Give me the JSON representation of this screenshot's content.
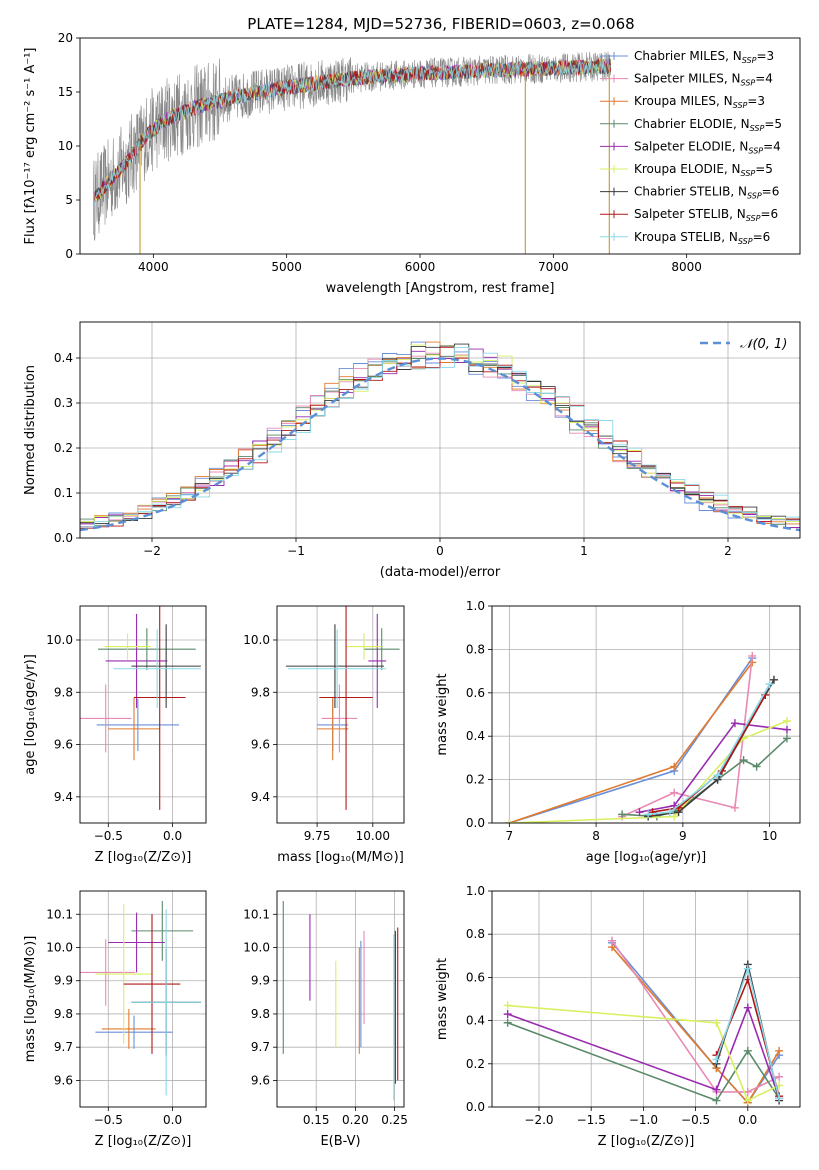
{
  "figure_title": "PLATE=1284, MJD=52736, FIBERID=0603, z=0.068",
  "colors": [
    "#6a8fd8",
    "#e88ab4",
    "#e07a2e",
    "#5a8a6a",
    "#9a2bb0",
    "#d7f060",
    "#3b3b3b",
    "#b01818",
    "#8ad8e8"
  ],
  "chart_data": [
    {
      "type": "line",
      "name": "spectrum",
      "xlabel": "wavelength [Angstrom, rest frame]",
      "ylabel": "Flux [fλ10⁻¹⁷ erg cm⁻² s⁻¹ A⁻¹]",
      "xlim": [
        3450,
        8850
      ],
      "ylim": [
        0,
        20
      ],
      "xticks": [
        4000,
        5000,
        6000,
        7000,
        8000
      ],
      "yticks": [
        0,
        5,
        10,
        15,
        20
      ],
      "grid": false,
      "legend_position": "right",
      "legend": [
        {
          "label": "Chabrier MILES, N",
          "sub": "SSP",
          "tail": "=3",
          "color": "#6a8fd8"
        },
        {
          "label": "Salpeter MILES, N",
          "sub": "SSP",
          "tail": "=4",
          "color": "#e88ab4"
        },
        {
          "label": "Kroupa MILES, N",
          "sub": "SSP",
          "tail": "=3",
          "color": "#e07a2e"
        },
        {
          "label": "Chabrier ELODIE, N",
          "sub": "SSP",
          "tail": "=5",
          "color": "#5a8a6a"
        },
        {
          "label": "Salpeter ELODIE, N",
          "sub": "SSP",
          "tail": "=4",
          "color": "#9a2bb0"
        },
        {
          "label": "Kroupa ELODIE, N",
          "sub": "SSP",
          "tail": "=5",
          "color": "#d7f060"
        },
        {
          "label": "Chabrier STELIB, N",
          "sub": "SSP",
          "tail": "=6",
          "color": "#3b3b3b"
        },
        {
          "label": "Salpeter STELIB, N",
          "sub": "SSP",
          "tail": "=6",
          "color": "#b01818"
        },
        {
          "label": "Kroupa STELIB, N",
          "sub": "SSP",
          "tail": "=6",
          "color": "#8ad8e8"
        }
      ],
      "continuum": [
        [
          3550,
          5.0
        ],
        [
          3650,
          6.5
        ],
        [
          3800,
          8.5
        ],
        [
          3950,
          11.0
        ],
        [
          4100,
          12.5
        ],
        [
          4300,
          13.5
        ],
        [
          4500,
          14.2
        ],
        [
          4800,
          15.0
        ],
        [
          5100,
          15.6
        ],
        [
          5500,
          16.3
        ],
        [
          6000,
          16.7
        ],
        [
          6500,
          17.0
        ],
        [
          7000,
          17.2
        ],
        [
          7430,
          17.4
        ]
      ],
      "spikes": [
        [
          3900,
          0
        ],
        [
          6790,
          0
        ],
        [
          7420,
          0
        ]
      ]
    },
    {
      "type": "bar",
      "name": "residual_histogram",
      "xlabel": "(data-model)/error",
      "ylabel": "Normed distribution",
      "xlim": [
        -2.5,
        2.5
      ],
      "ylim": [
        0,
        0.48
      ],
      "xticks": [
        -2,
        -1,
        0,
        1,
        2
      ],
      "xticklabels": [
        "−2",
        "−1",
        "0",
        "1",
        "2"
      ],
      "yticks": [
        0.0,
        0.1,
        0.2,
        0.3,
        0.4
      ],
      "yticklabels": [
        "0.0",
        "0.1",
        "0.2",
        "0.3",
        "0.4"
      ],
      "grid": true,
      "legend_position": "top-right",
      "legend_label": "𝒩(0, 1)",
      "reference_curve": {
        "name": "𝒩(0, 1)",
        "style": "dashed",
        "color": "#5b8fd6"
      }
    },
    {
      "type": "scatter",
      "name": "age_vs_Z",
      "xlabel": "Z [log₁₀(Z/Z⊙)]",
      "ylabel": "age  [log₁₀(age/yr)]",
      "xlim": [
        -0.72,
        0.26
      ],
      "ylim": [
        9.3,
        10.13
      ],
      "xticks": [
        -0.5,
        0.0
      ],
      "xticklabels": [
        "−0.5",
        "0.0"
      ],
      "yticks": [
        9.4,
        9.6,
        9.8,
        10.0
      ],
      "yticklabels": [
        "9.4",
        "9.6",
        "9.8",
        "10.0"
      ],
      "grid": true,
      "points": [
        {
          "x": -0.27,
          "xerr": 0.32,
          "y": 9.675,
          "yerr": 0.1,
          "color": "#6a8fd8"
        },
        {
          "x": -0.52,
          "xerr": 0.2,
          "y": 9.7,
          "yerr": 0.13,
          "color": "#e88ab4"
        },
        {
          "x": -0.3,
          "xerr": 0.2,
          "y": 9.66,
          "yerr": 0.12,
          "color": "#e07a2e"
        },
        {
          "x": -0.2,
          "xerr": 0.38,
          "y": 9.965,
          "yerr": 0.08,
          "color": "#5a8a6a"
        },
        {
          "x": -0.28,
          "xerr": 0.24,
          "y": 9.92,
          "yerr": 0.18,
          "color": "#9a2bb0"
        },
        {
          "x": -0.35,
          "xerr": 0.18,
          "y": 9.975,
          "yerr": 0.05,
          "color": "#d7f060"
        },
        {
          "x": -0.05,
          "xerr": 0.27,
          "y": 9.9,
          "yerr": 0.16,
          "color": "#3b3b3b"
        },
        {
          "x": -0.1,
          "xerr": 0.2,
          "y": 9.78,
          "yerr": 0.43,
          "color": "#b01818"
        },
        {
          "x": -0.12,
          "xerr": 0.34,
          "y": 9.89,
          "yerr": 0.15,
          "color": "#8ad8e8"
        }
      ]
    },
    {
      "type": "scatter",
      "name": "age_vs_mass",
      "xlabel": "mass [log₁₀(M/M⊙)]",
      "ylabel": "",
      "xlim": [
        9.57,
        10.14
      ],
      "ylim": [
        9.3,
        10.13
      ],
      "xticks": [
        9.75,
        10.0
      ],
      "xticklabels": [
        "9.75",
        "10.00"
      ],
      "yticks": [
        9.4,
        9.6,
        9.8,
        10.0
      ],
      "yticklabels": [
        "9.4",
        "9.6",
        "9.8",
        "10.0"
      ],
      "grid": true,
      "points": [
        {
          "x": 9.82,
          "xerr": 0.07,
          "y": 9.675,
          "yerr": 0.1,
          "color": "#6a8fd8"
        },
        {
          "x": 9.85,
          "xerr": 0.08,
          "y": 9.7,
          "yerr": 0.13,
          "color": "#e88ab4"
        },
        {
          "x": 9.82,
          "xerr": 0.07,
          "y": 9.66,
          "yerr": 0.12,
          "color": "#e07a2e"
        },
        {
          "x": 10.04,
          "xerr": 0.08,
          "y": 9.965,
          "yerr": 0.08,
          "color": "#5a8a6a"
        },
        {
          "x": 10.02,
          "xerr": 0.04,
          "y": 9.92,
          "yerr": 0.18,
          "color": "#9a2bb0"
        },
        {
          "x": 9.96,
          "xerr": 0.08,
          "y": 9.975,
          "yerr": 0.05,
          "color": "#d7f060"
        },
        {
          "x": 9.83,
          "xerr": 0.22,
          "y": 9.9,
          "yerr": 0.16,
          "color": "#3b3b3b"
        },
        {
          "x": 9.88,
          "xerr": 0.12,
          "y": 9.78,
          "yerr": 0.43,
          "color": "#b01818"
        },
        {
          "x": 9.84,
          "xerr": 0.22,
          "y": 9.89,
          "yerr": 0.15,
          "color": "#8ad8e8"
        }
      ]
    },
    {
      "type": "line",
      "name": "mass_weight_vs_age",
      "xlabel": "age  [log₁₀(age/yr)]",
      "ylabel": "mass weight",
      "xlim": [
        6.8,
        10.35
      ],
      "ylim": [
        0,
        1.0
      ],
      "xticks": [
        7,
        8,
        9,
        10
      ],
      "yticks": [
        0.0,
        0.2,
        0.4,
        0.6,
        0.8,
        1.0
      ],
      "yticklabels": [
        "0.0",
        "0.2",
        "0.4",
        "0.6",
        "0.8",
        "1.0"
      ],
      "grid": true,
      "series": [
        {
          "color": "#6a8fd8",
          "x": [
            7.0,
            8.9,
            9.8
          ],
          "y": [
            0.0,
            0.24,
            0.76
          ]
        },
        {
          "color": "#e07a2e",
          "x": [
            7.0,
            8.9,
            9.8
          ],
          "y": [
            0.0,
            0.26,
            0.74
          ]
        },
        {
          "color": "#e88ab4",
          "x": [
            8.3,
            8.9,
            9.6,
            9.8
          ],
          "y": [
            0.03,
            0.14,
            0.07,
            0.77
          ]
        },
        {
          "color": "#5a8a6a",
          "x": [
            8.3,
            8.7,
            8.95,
            9.4,
            9.7,
            9.85,
            10.2
          ],
          "y": [
            0.04,
            0.03,
            0.06,
            0.2,
            0.29,
            0.26,
            0.39
          ]
        },
        {
          "color": "#9a2bb0",
          "x": [
            8.5,
            8.9,
            9.6,
            10.2
          ],
          "y": [
            0.05,
            0.08,
            0.46,
            0.43
          ]
        },
        {
          "color": "#d7f060",
          "x": [
            7.0,
            8.9,
            9.7,
            10.2
          ],
          "y": [
            0.0,
            0.03,
            0.39,
            0.47
          ]
        },
        {
          "color": "#3b3b3b",
          "x": [
            8.6,
            8.95,
            9.4,
            10.05
          ],
          "y": [
            0.03,
            0.05,
            0.2,
            0.66
          ]
        },
        {
          "color": "#b01818",
          "x": [
            8.65,
            8.95,
            9.45,
            9.95
          ],
          "y": [
            0.05,
            0.07,
            0.24,
            0.59
          ]
        },
        {
          "color": "#8ad8e8",
          "x": [
            8.6,
            8.85,
            9.4,
            10.0
          ],
          "y": [
            0.04,
            0.05,
            0.22,
            0.64
          ]
        }
      ]
    },
    {
      "type": "scatter",
      "name": "mass_vs_Z",
      "xlabel": "Z [log₁₀(Z/Z⊙)]",
      "ylabel": "mass [log₁₀(M/M⊙)]",
      "xlim": [
        -0.72,
        0.26
      ],
      "ylim": [
        9.52,
        10.17
      ],
      "xticks": [
        -0.5,
        0.0
      ],
      "xticklabels": [
        "−0.5",
        "0.0"
      ],
      "yticks": [
        9.6,
        9.7,
        9.8,
        9.9,
        10.0,
        10.1
      ],
      "yticklabels": [
        "9.6",
        "9.7",
        "9.8",
        "9.9",
        "10.0",
        "10.1"
      ],
      "grid": true,
      "points": [
        {
          "x": -0.3,
          "xerr": 0.3,
          "y": 9.745,
          "yerr": 0.05,
          "color": "#6a8fd8"
        },
        {
          "x": -0.52,
          "xerr": 0.23,
          "y": 9.925,
          "yerr": 0.1,
          "color": "#e88ab4"
        },
        {
          "x": -0.34,
          "xerr": 0.21,
          "y": 9.755,
          "yerr": 0.06,
          "color": "#e07a2e"
        },
        {
          "x": -0.08,
          "xerr": 0.24,
          "y": 10.05,
          "yerr": 0.09,
          "color": "#5a8a6a"
        },
        {
          "x": -0.28,
          "xerr": 0.22,
          "y": 10.015,
          "yerr": 0.09,
          "color": "#9a2bb0"
        },
        {
          "x": -0.38,
          "xerr": 0.22,
          "y": 9.92,
          "yerr": 0.21,
          "color": "#d7f060"
        },
        {
          "x": -0.05,
          "xerr": 0.27,
          "y": 9.835,
          "yerr": 0.16,
          "color": "#3b3b3b"
        },
        {
          "x": -0.16,
          "xerr": 0.22,
          "y": 9.89,
          "yerr": 0.21,
          "color": "#b01818"
        },
        {
          "x": -0.05,
          "xerr": 0.27,
          "y": 9.835,
          "yerr": 0.28,
          "color": "#8ad8e8"
        }
      ]
    },
    {
      "type": "scatter",
      "name": "mass_vs_ebv",
      "xlabel": "E(B-V)",
      "ylabel": "",
      "xlim": [
        0.1,
        0.262
      ],
      "ylim": [
        9.52,
        10.17
      ],
      "xticks": [
        0.15,
        0.2,
        0.25
      ],
      "xticklabels": [
        "0.15",
        "0.20",
        "0.25"
      ],
      "yticks": [
        9.6,
        9.7,
        9.8,
        9.9,
        10.0,
        10.1
      ],
      "yticklabels": [
        "9.6",
        "9.7",
        "9.8",
        "9.9",
        "10.0",
        "10.1"
      ],
      "grid": true,
      "points": [
        {
          "x": 0.207,
          "y": 9.86,
          "yerr": 0.16,
          "color": "#6a8fd8"
        },
        {
          "x": 0.211,
          "y": 9.91,
          "yerr": 0.14,
          "color": "#e88ab4"
        },
        {
          "x": 0.205,
          "y": 9.84,
          "yerr": 0.16,
          "color": "#e07a2e"
        },
        {
          "x": 0.108,
          "y": 9.91,
          "yerr": 0.23,
          "color": "#5a8a6a"
        },
        {
          "x": 0.142,
          "y": 9.97,
          "yerr": 0.13,
          "color": "#9a2bb0"
        },
        {
          "x": 0.175,
          "y": 9.83,
          "yerr": 0.13,
          "color": "#d7f060"
        },
        {
          "x": 0.251,
          "y": 9.82,
          "yerr": 0.23,
          "color": "#3b3b3b"
        },
        {
          "x": 0.254,
          "y": 9.83,
          "yerr": 0.23,
          "color": "#b01818"
        },
        {
          "x": 0.249,
          "y": 9.79,
          "yerr": 0.25,
          "color": "#8ad8e8"
        }
      ]
    },
    {
      "type": "line",
      "name": "mass_weight_vs_Z",
      "xlabel": "Z [log₁₀(Z/Z⊙)]",
      "ylabel": "mass weight",
      "xlim": [
        -2.45,
        0.5
      ],
      "ylim": [
        0,
        1.0
      ],
      "xticks": [
        -2.0,
        -1.5,
        -1.0,
        -0.5,
        0.0
      ],
      "xticklabels": [
        "−2.0",
        "−1.5",
        "−1.0",
        "−0.5",
        "0.0"
      ],
      "yticks": [
        0.0,
        0.2,
        0.4,
        0.6,
        0.8,
        1.0
      ],
      "yticklabels": [
        "0.0",
        "0.2",
        "0.4",
        "0.6",
        "0.8",
        "1.0"
      ],
      "grid": true,
      "series": [
        {
          "color": "#6a8fd8",
          "x": [
            -1.3,
            -0.3,
            0.0,
            0.3
          ],
          "y": [
            0.76,
            0.18,
            0.02,
            0.24
          ]
        },
        {
          "color": "#e07a2e",
          "x": [
            -1.3,
            -0.3,
            0.0,
            0.3
          ],
          "y": [
            0.74,
            0.18,
            0.02,
            0.26
          ]
        },
        {
          "color": "#e88ab4",
          "x": [
            -1.3,
            -0.3,
            0.0,
            0.3
          ],
          "y": [
            0.77,
            0.07,
            0.07,
            0.14
          ]
        },
        {
          "color": "#5a8a6a",
          "x": [
            -2.3,
            -0.3,
            0.0,
            0.3
          ],
          "y": [
            0.39,
            0.03,
            0.26,
            0.04
          ]
        },
        {
          "color": "#9a2bb0",
          "x": [
            -2.3,
            -0.3,
            0.0,
            0.3
          ],
          "y": [
            0.43,
            0.08,
            0.46,
            0.04
          ]
        },
        {
          "color": "#d7f060",
          "x": [
            -2.3,
            -0.3,
            0.0,
            0.3
          ],
          "y": [
            0.47,
            0.39,
            0.03,
            0.1
          ]
        },
        {
          "color": "#3b3b3b",
          "x": [
            -0.3,
            0.0,
            0.3
          ],
          "y": [
            0.2,
            0.66,
            0.03
          ]
        },
        {
          "color": "#b01818",
          "x": [
            -0.3,
            0.0,
            0.3
          ],
          "y": [
            0.24,
            0.59,
            0.05
          ]
        },
        {
          "color": "#8ad8e8",
          "x": [
            -0.3,
            0.0,
            0.3
          ],
          "y": [
            0.22,
            0.64,
            0.04
          ]
        }
      ]
    }
  ]
}
